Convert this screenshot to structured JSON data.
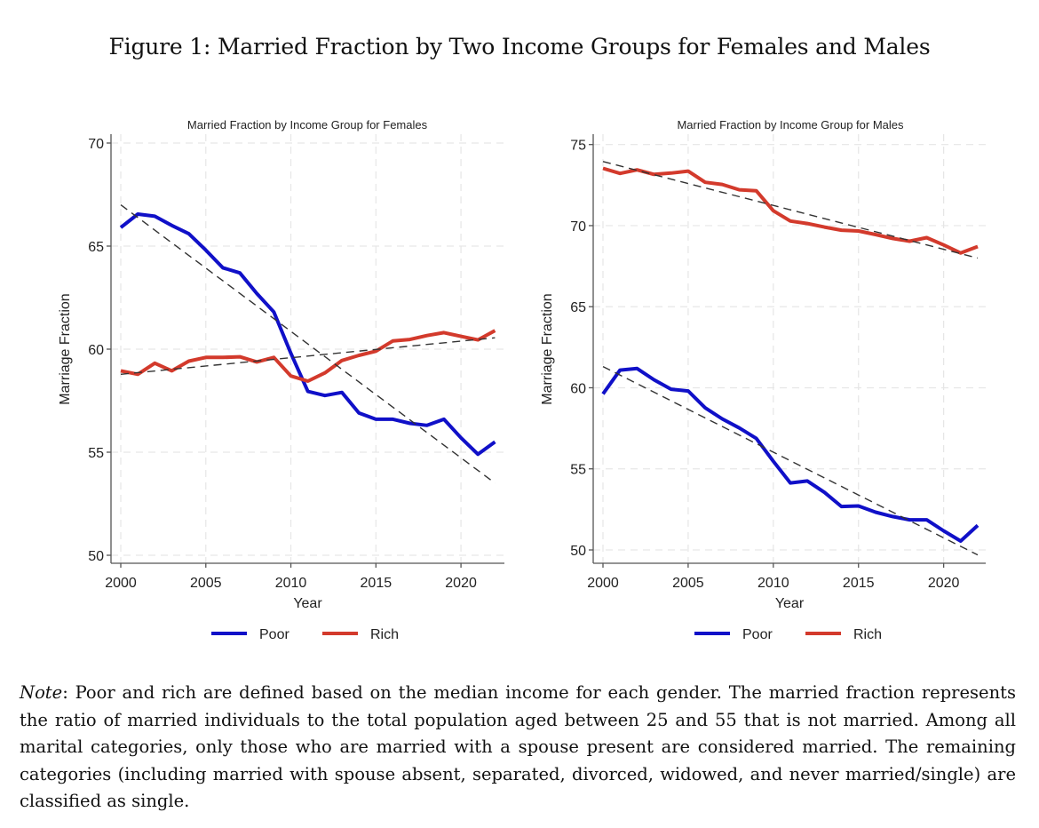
{
  "figure": {
    "title": "Figure 1: Married Fraction by Two Income Groups for Females and Males",
    "note_label": "Note",
    "note_text": ": Poor and rich are defined based on the median income for each gender. The married fraction represents the ratio of married individuals to the total population aged between 25 and 55 that is not married. Among all marital categories, only those who are married with a spouse present are considered married. The remaining categories (including married with spouse absent, separated, divorced, widowed, and never married/single) are classified as single."
  },
  "colors": {
    "poor": "#1010c8",
    "rich": "#d33a2c",
    "trend": "#333333",
    "grid": "#e6e6e6",
    "axis": "#555555"
  },
  "chart_data": [
    {
      "type": "line",
      "title": "Married Fraction by Income Group for Females",
      "xlabel": "Year",
      "ylabel": "Marriage Fraction",
      "xlim": [
        2000,
        2022
      ],
      "ylim": [
        50,
        70
      ],
      "xticks": [
        2000,
        2005,
        2010,
        2015,
        2020
      ],
      "yticks": [
        50,
        55,
        60,
        65,
        70
      ],
      "grid": true,
      "legend": {
        "placement": "bottom",
        "entries": [
          "Poor",
          "Rich"
        ]
      },
      "x": [
        2000,
        2001,
        2002,
        2003,
        2004,
        2005,
        2006,
        2007,
        2008,
        2009,
        2010,
        2011,
        2012,
        2013,
        2014,
        2015,
        2016,
        2017,
        2018,
        2019,
        2020,
        2021,
        2022
      ],
      "series": [
        {
          "name": "Poor",
          "color_key": "poor",
          "values": [
            65.9,
            66.55,
            66.45,
            66.0,
            65.6,
            64.8,
            63.95,
            63.7,
            62.7,
            61.8,
            59.8,
            57.95,
            57.75,
            57.9,
            56.9,
            56.6,
            56.6,
            56.4,
            56.3,
            56.6,
            55.7,
            54.9,
            55.5
          ]
        },
        {
          "name": "Rich",
          "color_key": "rich",
          "values": [
            58.95,
            58.78,
            59.32,
            58.95,
            59.42,
            59.6,
            59.6,
            59.63,
            59.38,
            59.6,
            58.7,
            58.45,
            58.85,
            59.45,
            59.7,
            59.9,
            60.4,
            60.47,
            60.66,
            60.8,
            60.62,
            60.45,
            60.9
          ]
        }
      ],
      "trend_lines": [
        {
          "name": "Poor linear fit",
          "x": [
            2000,
            2022
          ],
          "y": [
            67.0,
            53.5
          ]
        },
        {
          "name": "Rich linear fit",
          "x": [
            2000,
            2022
          ],
          "y": [
            58.78,
            60.55
          ]
        }
      ]
    },
    {
      "type": "line",
      "title": "Married Fraction by Income Group for Males",
      "xlabel": "Year",
      "ylabel": "Marriage Fraction",
      "xlim": [
        2000,
        2022
      ],
      "ylim": [
        50,
        75
      ],
      "xticks": [
        2000,
        2005,
        2010,
        2015,
        2020
      ],
      "yticks": [
        50,
        55,
        60,
        65,
        70,
        75
      ],
      "grid": true,
      "legend": {
        "placement": "bottom",
        "entries": [
          "Poor",
          "Rich"
        ]
      },
      "x": [
        2000,
        2001,
        2002,
        2003,
        2004,
        2005,
        2006,
        2007,
        2008,
        2009,
        2010,
        2011,
        2012,
        2013,
        2014,
        2015,
        2016,
        2017,
        2018,
        2019,
        2020,
        2021,
        2022
      ],
      "series": [
        {
          "name": "Poor",
          "color_key": "poor",
          "values": [
            59.62,
            61.09,
            61.19,
            60.49,
            59.91,
            59.8,
            58.76,
            58.08,
            57.52,
            56.88,
            55.47,
            54.13,
            54.25,
            53.55,
            52.68,
            52.71,
            52.33,
            52.06,
            51.86,
            51.86,
            51.18,
            50.55,
            51.51
          ]
        },
        {
          "name": "Rich",
          "color_key": "rich",
          "values": [
            73.53,
            73.22,
            73.44,
            73.16,
            73.24,
            73.36,
            72.67,
            72.54,
            72.21,
            72.15,
            70.92,
            70.28,
            70.13,
            69.91,
            69.72,
            69.67,
            69.45,
            69.21,
            69.04,
            69.26,
            68.81,
            68.31,
            68.71
          ]
        }
      ],
      "trend_lines": [
        {
          "name": "Poor linear fit",
          "x": [
            2000,
            2022
          ],
          "y": [
            61.31,
            49.69
          ]
        },
        {
          "name": "Rich linear fit",
          "x": [
            2000,
            2022
          ],
          "y": [
            73.95,
            68.0
          ]
        }
      ]
    }
  ]
}
